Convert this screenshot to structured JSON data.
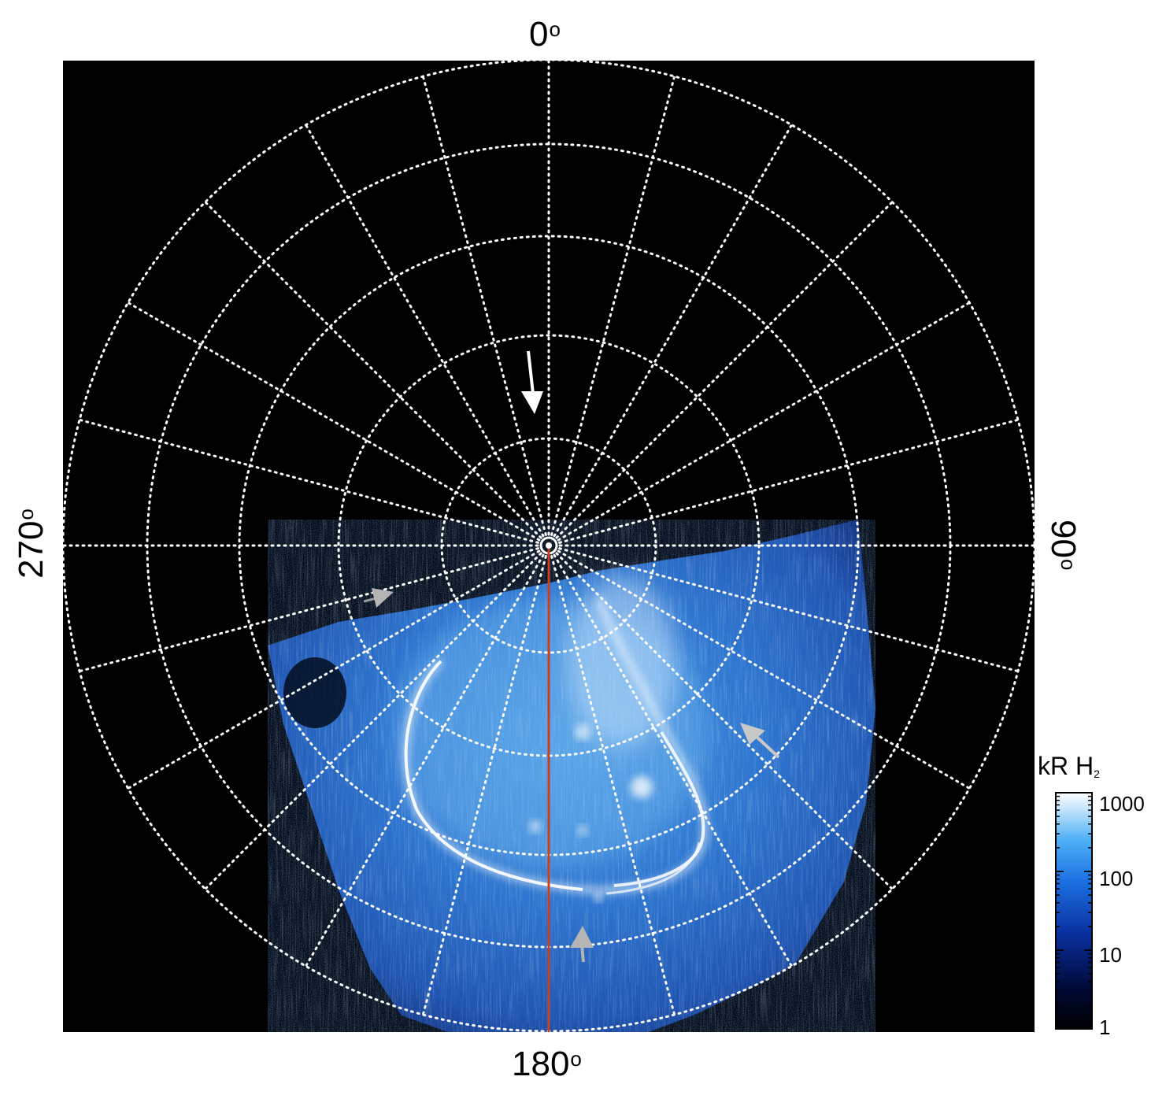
{
  "image": {
    "description_labels": {
      "lon_top": "0",
      "lon_right": "90",
      "lon_bottom": "180",
      "lon_left": "270",
      "degree_symbol": "o"
    },
    "colorbar": {
      "title_main": "kR H",
      "title_sub": "2",
      "ticks": [
        "1000",
        "100",
        "10",
        "1"
      ]
    },
    "colors": {
      "background": "#000000",
      "grid": "#ffffff",
      "aurora_bright": "#e8f4ff",
      "aurora_mid": "#2f8fe8",
      "aurora_dim": "#0a2d8a",
      "meridian_line": "#c8401e",
      "arrow_white": "#ffffff",
      "arrow_gray": "#b4b4b4"
    },
    "icons": [
      "direction-arrow-icon",
      "feature-arrow-icon"
    ]
  }
}
